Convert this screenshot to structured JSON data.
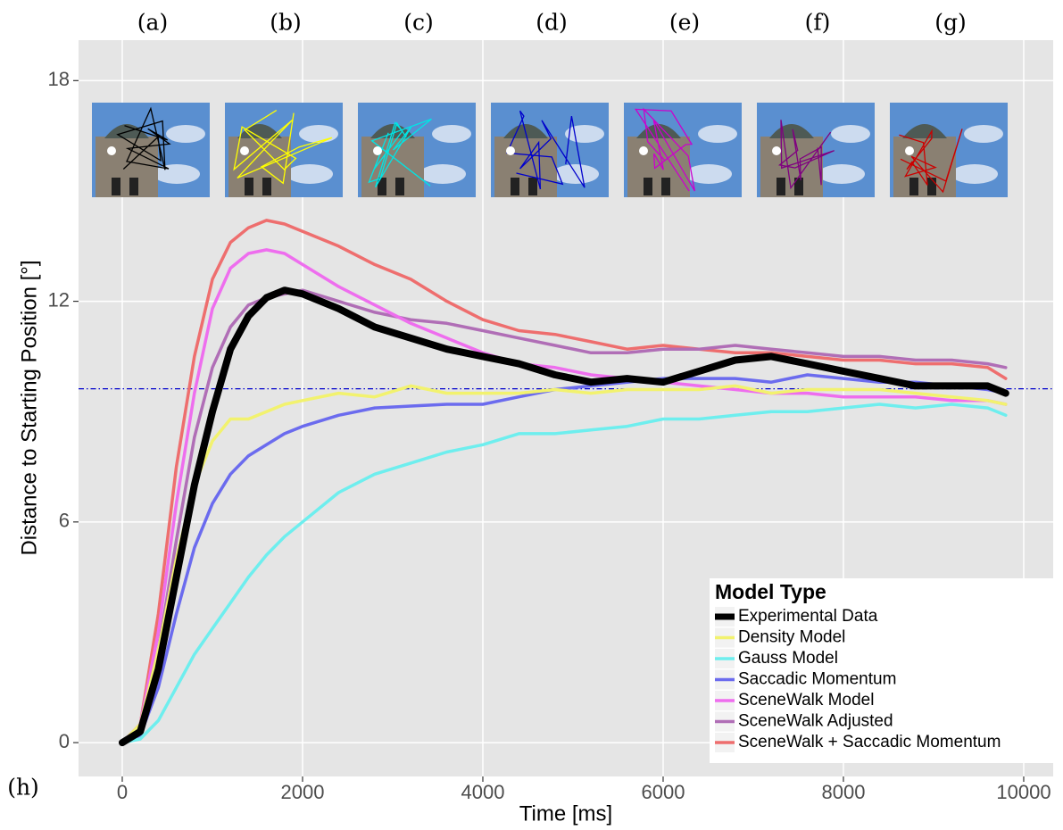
{
  "chart_data": {
    "type": "line",
    "panel_labels": [
      "(a)",
      "(b)",
      "(c)",
      "(d)",
      "(e)",
      "(f)",
      "(g)"
    ],
    "corner_label": "(h)",
    "xlabel": "Time [ms]",
    "ylabel": "Distance to Starting Position [°]",
    "legend_title": "Model Type",
    "legend": "bottom-right",
    "grid": true,
    "xlim": [
      -485,
      10327
    ],
    "ylim": [
      -0.92,
      19.1
    ],
    "xticks": [
      0,
      2000,
      4000,
      6000,
      8000,
      10000
    ],
    "yticks": [
      0,
      6,
      12,
      18
    ],
    "reference_line": {
      "value": 9.62,
      "color": "#0000cc"
    },
    "x": [
      0,
      200,
      400,
      600,
      800,
      1000,
      1200,
      1400,
      1600,
      1800,
      2000,
      2400,
      2800,
      3200,
      3600,
      4000,
      4400,
      4800,
      5200,
      5600,
      6000,
      6400,
      6800,
      7200,
      7600,
      8000,
      8400,
      8800,
      9200,
      9600,
      9800
    ],
    "series": [
      {
        "name": "Experimental Data",
        "color": "#000000",
        "values": [
          0,
          0.3,
          2,
          4.5,
          7,
          9,
          10.7,
          11.6,
          12.1,
          12.3,
          12.2,
          11.8,
          11.3,
          11.0,
          10.7,
          10.5,
          10.3,
          10.0,
          9.8,
          9.9,
          9.8,
          10.1,
          10.4,
          10.5,
          10.3,
          10.1,
          9.9,
          9.7,
          9.7,
          9.7,
          9.5
        ]
      },
      {
        "name": "Density Model",
        "color": "#f2f26e",
        "values": [
          0,
          0.5,
          2.5,
          5,
          7,
          8.2,
          8.8,
          8.8,
          9.0,
          9.2,
          9.3,
          9.5,
          9.4,
          9.7,
          9.5,
          9.5,
          9.5,
          9.6,
          9.5,
          9.6,
          9.6,
          9.6,
          9.7,
          9.5,
          9.6,
          9.6,
          9.6,
          9.5,
          9.4,
          9.3,
          9.2
        ]
      },
      {
        "name": "Gauss Model",
        "color": "#6eeeee",
        "values": [
          0,
          0.1,
          0.6,
          1.5,
          2.4,
          3.1,
          3.8,
          4.5,
          5.1,
          5.6,
          6.0,
          6.8,
          7.3,
          7.6,
          7.9,
          8.1,
          8.4,
          8.4,
          8.5,
          8.6,
          8.8,
          8.8,
          8.9,
          9.0,
          9.0,
          9.1,
          9.2,
          9.1,
          9.2,
          9.1,
          8.9
        ]
      },
      {
        "name": "Saccadic Momentum",
        "color": "#6b6bee",
        "values": [
          0,
          0.2,
          1.5,
          3.5,
          5.3,
          6.5,
          7.3,
          7.8,
          8.1,
          8.4,
          8.6,
          8.9,
          9.1,
          9.15,
          9.2,
          9.2,
          9.4,
          9.6,
          9.7,
          9.8,
          9.9,
          9.9,
          9.9,
          9.8,
          10.0,
          9.9,
          9.8,
          9.8,
          9.7,
          9.6,
          9.5
        ]
      },
      {
        "name": "SceneWalk Model",
        "color": "#ee6eee",
        "values": [
          0,
          0.5,
          3,
          6.5,
          9.5,
          11.8,
          12.9,
          13.3,
          13.4,
          13.3,
          13.0,
          12.4,
          11.9,
          11.4,
          11.0,
          10.6,
          10.3,
          10.2,
          10.0,
          9.9,
          9.8,
          9.7,
          9.6,
          9.5,
          9.5,
          9.4,
          9.4,
          9.4,
          9.3,
          9.3,
          9.2
        ]
      },
      {
        "name": "SceneWalk Adjusted",
        "color": "#b06eb6",
        "values": [
          0,
          0.4,
          2.5,
          5.5,
          8.3,
          10.2,
          11.3,
          11.9,
          12.1,
          12.2,
          12.3,
          12.0,
          11.7,
          11.5,
          11.4,
          11.2,
          11.0,
          10.8,
          10.6,
          10.6,
          10.7,
          10.7,
          10.8,
          10.7,
          10.6,
          10.5,
          10.5,
          10.4,
          10.4,
          10.3,
          10.2
        ]
      },
      {
        "name": "SceneWalk + Saccadic Momentum",
        "color": "#ee6e6e",
        "values": [
          0,
          0.5,
          3.5,
          7.5,
          10.5,
          12.6,
          13.6,
          14.0,
          14.2,
          14.1,
          13.9,
          13.5,
          13.0,
          12.6,
          12.0,
          11.5,
          11.2,
          11.1,
          10.9,
          10.7,
          10.8,
          10.7,
          10.6,
          10.6,
          10.5,
          10.4,
          10.4,
          10.3,
          10.3,
          10.2,
          9.9
        ]
      }
    ]
  }
}
